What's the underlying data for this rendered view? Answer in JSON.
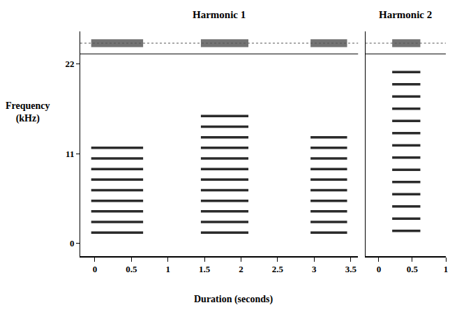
{
  "chart_data": [
    {
      "type": "spectrogram",
      "title": "Harmonic 1",
      "x_label": "Duration (seconds)",
      "y_label": "Frequency (kHz)",
      "xlim": [
        -0.2,
        3.6
      ],
      "xticks": [
        0,
        0.5,
        1,
        1.5,
        2,
        2.5,
        3,
        3.5
      ],
      "ylim": [
        -1.6,
        26
      ],
      "yticks": [
        0,
        11,
        22
      ],
      "color": "#2b2b2b",
      "calls": [
        {
          "start": -0.05,
          "end": 0.66,
          "fundamental": 1.3,
          "top": 12
        },
        {
          "start": 1.45,
          "end": 2.1,
          "fundamental": 1.3,
          "top": 16
        },
        {
          "start": 2.95,
          "end": 3.45,
          "fundamental": 1.3,
          "top": 14
        }
      ]
    },
    {
      "type": "spectrogram",
      "title": "Harmonic 2",
      "xlim": [
        -0.2,
        1
      ],
      "xticks": [
        0,
        0.5,
        1
      ],
      "ylim": [
        -1.6,
        26
      ],
      "tick_labels": "x",
      "color": "#2b2b2b",
      "calls": [
        {
          "start": 0.2,
          "end": 0.62,
          "fundamental": 1.5,
          "top": 22
        }
      ]
    }
  ]
}
